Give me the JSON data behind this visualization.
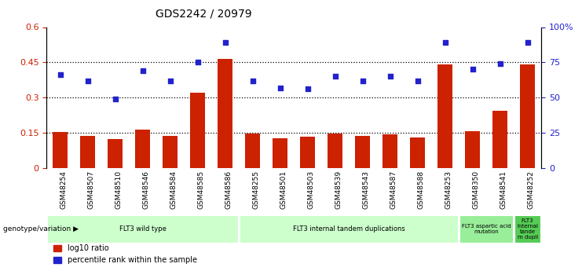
{
  "title": "GDS2242 / 20979",
  "samples": [
    "GSM48254",
    "GSM48507",
    "GSM48510",
    "GSM48546",
    "GSM48584",
    "GSM48585",
    "GSM48586",
    "GSM48255",
    "GSM48501",
    "GSM48503",
    "GSM48539",
    "GSM48543",
    "GSM48587",
    "GSM48588",
    "GSM48253",
    "GSM48350",
    "GSM48541",
    "GSM48252"
  ],
  "log10_ratio": [
    0.155,
    0.138,
    0.125,
    0.165,
    0.138,
    0.32,
    0.465,
    0.148,
    0.128,
    0.133,
    0.148,
    0.138,
    0.143,
    0.13,
    0.44,
    0.158,
    0.245,
    0.44
  ],
  "percentile_rank_pct": [
    66,
    62,
    49,
    69,
    62,
    75,
    89,
    62,
    57,
    56,
    65,
    62,
    65,
    62,
    89,
    70,
    74,
    89
  ],
  "bar_color": "#cc2200",
  "dot_color": "#2222cc",
  "ylim_left": [
    0,
    0.6
  ],
  "ylim_right": [
    0,
    100
  ],
  "yticks_left": [
    0,
    0.15,
    0.3,
    0.45,
    0.6
  ],
  "ytick_labels_left": [
    "0",
    "0.15",
    "0.3",
    "0.45",
    "0.6"
  ],
  "yticks_right": [
    0,
    25,
    50,
    75,
    100
  ],
  "ytick_labels_right": [
    "0",
    "25",
    "50",
    "75",
    "100%"
  ],
  "hlines": [
    0.15,
    0.3,
    0.45
  ],
  "groups": [
    {
      "label": "FLT3 wild type",
      "start": 0,
      "end": 7,
      "color": "#ccffcc"
    },
    {
      "label": "FLT3 internal tandem duplications",
      "start": 7,
      "end": 15,
      "color": "#ccffcc"
    },
    {
      "label": "FLT3 aspartic acid\nmutation",
      "start": 15,
      "end": 17,
      "color": "#99ee99"
    },
    {
      "label": "FLT3\ninternal\ntande\nm dupli",
      "start": 17,
      "end": 18,
      "color": "#55cc55"
    }
  ],
  "genotype_label": "genotype/variation",
  "legend_bar_label": "log10 ratio",
  "legend_dot_label": "percentile rank within the sample",
  "bar_width": 0.55
}
